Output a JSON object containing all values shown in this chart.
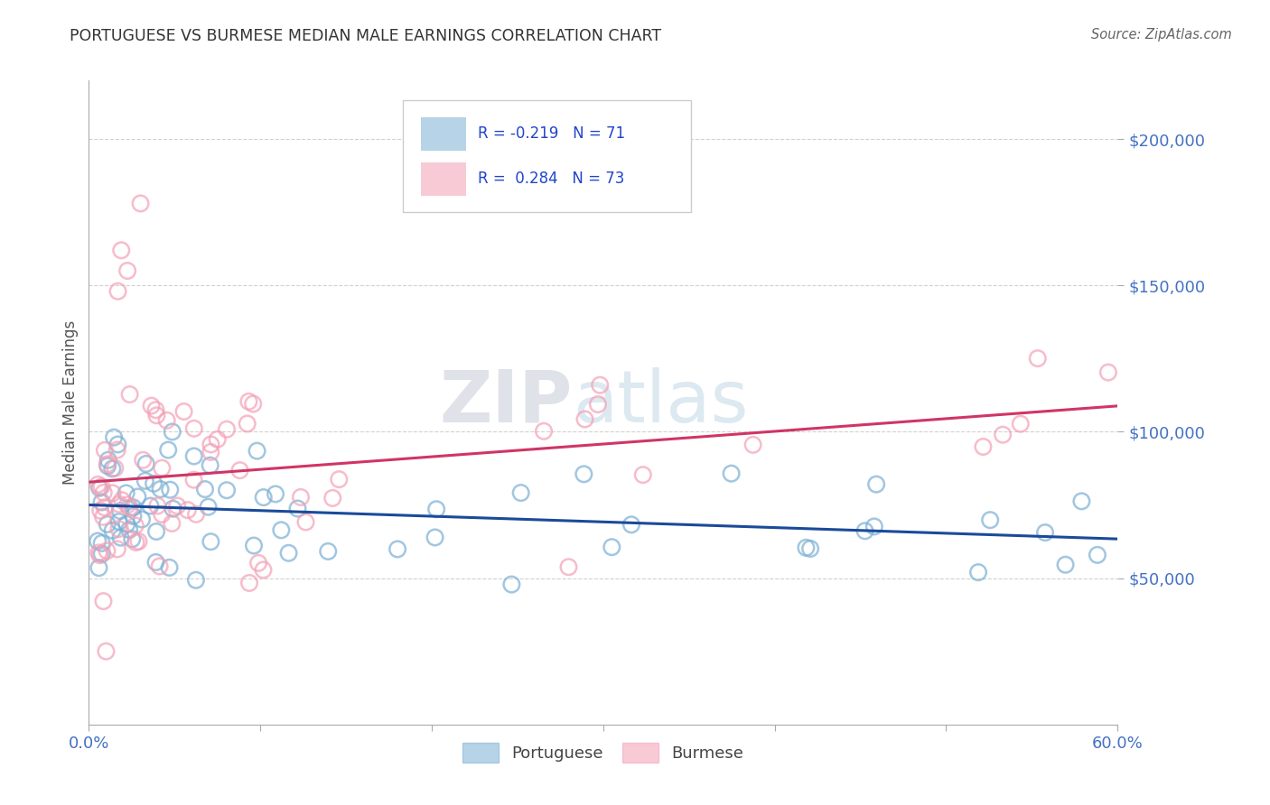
{
  "title": "PORTUGUESE VS BURMESE MEDIAN MALE EARNINGS CORRELATION CHART",
  "source": "Source: ZipAtlas.com",
  "ylabel": "Median Male Earnings",
  "xlim": [
    0.0,
    0.6
  ],
  "ylim": [
    0,
    220000
  ],
  "xtick_vals": [
    0.0,
    0.1,
    0.2,
    0.3,
    0.4,
    0.5,
    0.6
  ],
  "xticklabels": [
    "0.0%",
    "",
    "",
    "",
    "",
    "",
    "60.0%"
  ],
  "ytick_positions": [
    50000,
    100000,
    150000,
    200000
  ],
  "ytick_labels": [
    "$50,000",
    "$100,000",
    "$150,000",
    "$200,000"
  ],
  "portuguese_color": "#7bafd4",
  "burmese_color": "#f4a0b5",
  "portuguese_line_color": "#1a4a9a",
  "burmese_line_color": "#d03565",
  "legend_r_portuguese": "R = -0.219",
  "legend_n_portuguese": "N = 71",
  "legend_r_burmese": "R =  0.284",
  "legend_n_burmese": "N = 73",
  "tick_color": "#4472c4",
  "label_color": "#555555",
  "grid_color": "#cccccc",
  "watermark_zip": "ZIP",
  "watermark_atlas": "atlas"
}
